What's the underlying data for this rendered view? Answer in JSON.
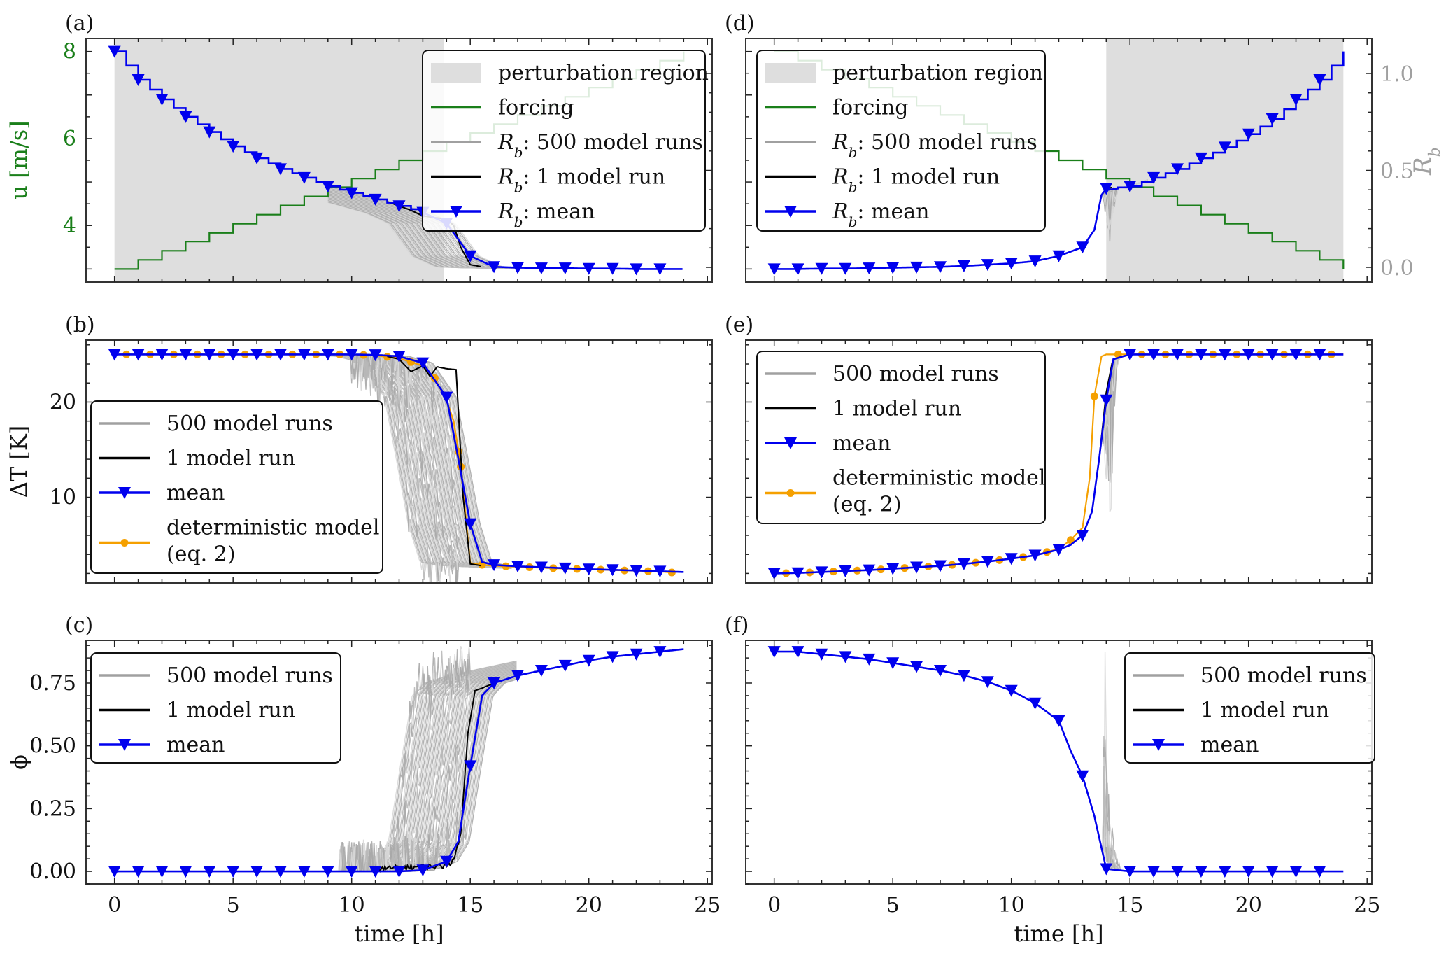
{
  "figure": {
    "xlabel": "time [h]",
    "xticks": [
      "0",
      "5",
      "10",
      "15",
      "20",
      "25"
    ]
  },
  "chart_data": [
    {
      "panel": "(a)",
      "type": "line",
      "xlabel": "",
      "ylabel": "u [m/s]",
      "ylabel_right": "R_b",
      "xlim": [
        -1.2,
        25.2
      ],
      "ylim": [
        2.7,
        8.3
      ],
      "ylim_right": [
        -0.02,
        1.2
      ],
      "yticks": [
        "4",
        "6",
        "8"
      ],
      "yticks_right": [
        "0.0",
        "0.5",
        "1.0"
      ],
      "shaded_region": {
        "label": "perturbation region",
        "x": [
          0,
          13.9
        ]
      },
      "colors": {
        "forcing": "#1a7f1a",
        "runs": "#a0a0a0",
        "one_run": "#000000",
        "mean": "#0000ee",
        "shade": "#dedede",
        "right_axis": "#9a9a9a"
      },
      "legend": {
        "placement": "upper-right",
        "entries": [
          "perturbation region",
          "forcing",
          "R_b: 500 model runs",
          "R_b: 1 model run",
          "R_b: mean"
        ]
      },
      "series": [
        {
          "name": "forcing",
          "axis": "left",
          "step": true,
          "x": [
            0,
            1,
            2,
            3,
            4,
            5,
            6,
            7,
            8,
            9,
            10,
            11,
            12,
            13,
            14,
            15,
            16,
            17,
            18,
            19,
            20,
            21,
            22,
            23,
            24
          ],
          "values": [
            3.0,
            3.21,
            3.42,
            3.63,
            3.83,
            4.04,
            4.25,
            4.46,
            4.67,
            4.88,
            5.08,
            5.29,
            5.5,
            5.71,
            5.92,
            6.13,
            6.33,
            6.54,
            6.75,
            6.96,
            7.17,
            7.38,
            7.58,
            7.79,
            8.0
          ]
        },
        {
          "name": "R_b: mean",
          "axis": "left",
          "marker": "triangle-down",
          "x": [
            0,
            1,
            2,
            3,
            4,
            5,
            6,
            7,
            8,
            9,
            10,
            11,
            12,
            13,
            14,
            15,
            16,
            17,
            18,
            19,
            20,
            21,
            22,
            23,
            24
          ],
          "values": [
            8.0,
            7.35,
            6.9,
            6.5,
            6.15,
            5.82,
            5.55,
            5.3,
            5.1,
            4.9,
            4.75,
            4.6,
            4.45,
            4.3,
            4.05,
            3.3,
            3.05,
            3.03,
            3.02,
            3.02,
            3.01,
            3.01,
            3.0,
            3.0,
            3.0
          ]
        },
        {
          "name": "R_b: 1 model run",
          "axis": "left",
          "x": [
            11.5,
            12,
            12.5,
            13,
            13.5,
            14,
            14.3,
            14.6,
            15,
            15.5
          ],
          "values": [
            4.55,
            4.45,
            4.35,
            4.22,
            4.18,
            4.15,
            4.0,
            3.5,
            3.1,
            3.05
          ]
        },
        {
          "name": "R_b: 500 model runs",
          "axis": "left",
          "count_shown": 40,
          "spread_x": [
            10.5,
            15.8
          ]
        }
      ]
    },
    {
      "panel": "(b)",
      "type": "line",
      "ylabel": "ΔT [K]",
      "xlim": [
        -1.2,
        25.2
      ],
      "ylim": [
        1.0,
        26.5
      ],
      "yticks": [
        "10",
        "20"
      ],
      "legend": {
        "placement": "center-left",
        "entries": [
          "500 model runs",
          "1 model run",
          "mean",
          "deterministic model (eq. 2)"
        ]
      },
      "colors": {
        "runs": "#a0a0a0",
        "one_run": "#000000",
        "mean": "#0000ee",
        "deterministic": "#f5a000"
      },
      "series": [
        {
          "name": "mean",
          "marker": "triangle-down",
          "x": [
            0,
            1,
            2,
            3,
            4,
            5,
            6,
            7,
            8,
            9,
            10,
            11,
            12,
            13,
            14,
            14.5,
            15,
            15.5,
            16,
            17,
            18,
            19,
            20,
            21,
            22,
            23,
            24
          ],
          "values": [
            25,
            25,
            25,
            25,
            25,
            25,
            25,
            25,
            25,
            25,
            25,
            24.95,
            24.8,
            24.1,
            20.5,
            14,
            7.2,
            3.2,
            2.9,
            2.75,
            2.65,
            2.55,
            2.45,
            2.38,
            2.3,
            2.22,
            2.15
          ]
        },
        {
          "name": "deterministic model (eq. 2)",
          "marker": "circle",
          "x": [
            0,
            1,
            2,
            3,
            4,
            5,
            6,
            7,
            8,
            9,
            10,
            11,
            12,
            13,
            13.5,
            14,
            14.3,
            14.6,
            15,
            15.5,
            16,
            17,
            18,
            19,
            20,
            21,
            22,
            23,
            23.5
          ],
          "values": [
            25,
            25,
            25,
            25,
            25,
            25,
            25,
            25,
            25,
            25,
            25,
            24.9,
            24.6,
            23.8,
            22.5,
            20.2,
            18,
            13.2,
            3.1,
            2.9,
            2.8,
            2.7,
            2.6,
            2.5,
            2.45,
            2.35,
            2.28,
            2.2,
            2.1
          ]
        },
        {
          "name": "1 model run",
          "x": [
            11.5,
            12,
            12.5,
            13,
            13.3,
            13.6,
            14,
            14.4,
            14.7,
            15,
            15.5
          ],
          "values": [
            24.8,
            24.5,
            23.2,
            23.8,
            22.7,
            23.7,
            23.5,
            23.4,
            10,
            3.0,
            2.8
          ]
        },
        {
          "name": "500 model runs",
          "count_shown": 60,
          "spread_x": [
            10,
            15.6
          ]
        }
      ]
    },
    {
      "panel": "(c)",
      "type": "line",
      "ylabel": "ϕ",
      "xlabel": "time [h]",
      "xlim": [
        -1.2,
        25.2
      ],
      "ylim": [
        -0.05,
        0.92
      ],
      "yticks": [
        "0.00",
        "0.25",
        "0.50",
        "0.75"
      ],
      "legend": {
        "placement": "upper-left",
        "entries": [
          "500 model runs",
          "1 model run",
          "mean"
        ]
      },
      "colors": {
        "runs": "#a0a0a0",
        "one_run": "#000000",
        "mean": "#0000ee"
      },
      "series": [
        {
          "name": "mean",
          "marker": "triangle-down",
          "x": [
            0,
            1,
            2,
            3,
            4,
            5,
            6,
            7,
            8,
            9,
            10,
            11,
            12,
            13,
            14,
            14.5,
            15,
            15.5,
            16,
            17,
            18,
            19,
            20,
            21,
            22,
            23,
            24
          ],
          "values": [
            0,
            0,
            0,
            0,
            0,
            0,
            0,
            0,
            0,
            0,
            0,
            0,
            0,
            0.005,
            0.04,
            0.12,
            0.42,
            0.7,
            0.75,
            0.78,
            0.8,
            0.82,
            0.84,
            0.855,
            0.865,
            0.875,
            0.885
          ]
        },
        {
          "name": "1 model run",
          "x": [
            11,
            12,
            13,
            13.8,
            14.3,
            14.6,
            14.9,
            15.2,
            15.5,
            16
          ],
          "values": [
            0,
            0.005,
            0.01,
            0.01,
            0.03,
            0.15,
            0.55,
            0.72,
            0.73,
            0.75
          ]
        },
        {
          "name": "500 model runs",
          "count_shown": 60,
          "spread_x": [
            9.5,
            15.8
          ]
        }
      ]
    },
    {
      "panel": "(d)",
      "type": "line",
      "xlim": [
        -1.2,
        25.2
      ],
      "ylim": [
        2.7,
        8.3
      ],
      "ylim_right": [
        -0.02,
        1.2
      ],
      "yticks_right": [
        "0.0",
        "0.5",
        "1.0"
      ],
      "ylabel_right": "R_b",
      "shaded_region": {
        "label": "perturbation region",
        "x": [
          14.0,
          24
        ]
      },
      "legend": {
        "placement": "upper-left",
        "entries": [
          "perturbation region",
          "forcing",
          "R_b: 500 model runs",
          "R_b: 1 model run",
          "R_b: mean"
        ]
      },
      "colors": {
        "forcing": "#1a7f1a",
        "runs": "#a0a0a0",
        "one_run": "#000000",
        "mean": "#0000ee",
        "shade": "#dedede"
      },
      "series": [
        {
          "name": "forcing",
          "axis": "left",
          "step": true,
          "x": [
            0,
            1,
            2,
            3,
            4,
            5,
            6,
            7,
            8,
            9,
            10,
            11,
            12,
            13,
            14,
            15,
            16,
            17,
            18,
            19,
            20,
            21,
            22,
            23,
            24
          ],
          "values": [
            8.0,
            7.79,
            7.58,
            7.38,
            7.17,
            6.96,
            6.75,
            6.54,
            6.33,
            6.13,
            5.92,
            5.71,
            5.5,
            5.29,
            5.08,
            4.88,
            4.67,
            4.46,
            4.25,
            4.04,
            3.83,
            3.63,
            3.42,
            3.21,
            3.0
          ]
        },
        {
          "name": "R_b: mean",
          "axis": "left",
          "marker": "triangle-down",
          "x": [
            0,
            1,
            2,
            3,
            4,
            5,
            6,
            7,
            8,
            9,
            10,
            11,
            12,
            13,
            13.5,
            13.8,
            14,
            15,
            16,
            17,
            18,
            19,
            20,
            21,
            22,
            23,
            24
          ],
          "values": [
            3.0,
            3.0,
            3.01,
            3.01,
            3.02,
            3.03,
            3.04,
            3.05,
            3.07,
            3.1,
            3.13,
            3.18,
            3.3,
            3.5,
            3.9,
            4.7,
            4.85,
            4.9,
            5.1,
            5.3,
            5.55,
            5.8,
            6.1,
            6.45,
            6.9,
            7.35,
            8.0
          ]
        },
        {
          "name": "R_b: 1 model run",
          "axis": "left",
          "x": [
            13.5,
            13.8,
            14.0,
            14.3
          ],
          "values": [
            3.9,
            4.7,
            4.85,
            4.88
          ]
        },
        {
          "name": "R_b: 500 model runs",
          "axis": "left",
          "count_shown": 25,
          "spread_x": [
            13.6,
            14.6
          ]
        }
      ]
    },
    {
      "panel": "(e)",
      "type": "line",
      "xlim": [
        -1.2,
        25.2
      ],
      "ylim": [
        1.0,
        26.5
      ],
      "legend": {
        "placement": "upper-left",
        "entries": [
          "500 model runs",
          "1 model run",
          "mean",
          "deterministic model (eq. 2)"
        ]
      },
      "colors": {
        "runs": "#a0a0a0",
        "one_run": "#000000",
        "mean": "#0000ee",
        "deterministic": "#f5a000"
      },
      "series": [
        {
          "name": "mean",
          "marker": "triangle-down",
          "x": [
            0,
            1,
            2,
            3,
            4,
            5,
            6,
            7,
            8,
            9,
            10,
            11,
            12,
            12.5,
            13,
            13.4,
            13.7,
            14,
            14.3,
            15,
            16,
            17,
            18,
            19,
            20,
            21,
            22,
            23,
            24
          ],
          "values": [
            2.0,
            2.05,
            2.15,
            2.25,
            2.35,
            2.5,
            2.65,
            2.8,
            3.0,
            3.25,
            3.55,
            3.9,
            4.5,
            5.0,
            6.0,
            8.5,
            14,
            20.2,
            24.5,
            25,
            25,
            25,
            25,
            25,
            25,
            25,
            25,
            25,
            25
          ]
        },
        {
          "name": "deterministic model (eq. 2)",
          "marker": "circle",
          "x": [
            0,
            1,
            2,
            3,
            4,
            5,
            6,
            7,
            8,
            9,
            10,
            11,
            12,
            12.5,
            13,
            13.3,
            13.5,
            13.8,
            14,
            14.5,
            15,
            16,
            17,
            18,
            19,
            20,
            21,
            22,
            23,
            24
          ],
          "values": [
            2.0,
            2.05,
            2.15,
            2.25,
            2.35,
            2.5,
            2.65,
            2.8,
            3.0,
            3.25,
            3.55,
            3.9,
            4.6,
            5.5,
            6.8,
            12,
            20.6,
            24.8,
            25,
            25,
            25,
            25,
            25,
            25,
            25,
            25,
            25,
            25,
            25,
            25
          ]
        },
        {
          "name": "1 model run",
          "x": [
            13.4,
            13.7,
            14.0,
            14.3
          ],
          "values": [
            8.5,
            14,
            21,
            24.8
          ]
        },
        {
          "name": "500 model runs",
          "count_shown": 25,
          "spread_x": [
            13.6,
            14.5
          ]
        }
      ]
    },
    {
      "panel": "(f)",
      "type": "line",
      "xlabel": "time [h]",
      "xlim": [
        -1.2,
        25.2
      ],
      "ylim": [
        -0.05,
        0.92
      ],
      "legend": {
        "placement": "upper-right",
        "entries": [
          "500 model runs",
          "1 model run",
          "mean"
        ]
      },
      "colors": {
        "runs": "#a0a0a0",
        "one_run": "#000000",
        "mean": "#0000ee"
      },
      "series": [
        {
          "name": "mean",
          "marker": "triangle-down",
          "x": [
            0,
            1,
            2,
            3,
            4,
            5,
            6,
            7,
            8,
            9,
            10,
            11,
            12,
            12.5,
            13,
            13.5,
            14,
            15,
            16,
            17,
            18,
            19,
            20,
            21,
            22,
            23,
            24
          ],
          "values": [
            0.875,
            0.875,
            0.865,
            0.855,
            0.845,
            0.83,
            0.815,
            0.8,
            0.78,
            0.755,
            0.72,
            0.67,
            0.6,
            0.48,
            0.38,
            0.22,
            0.01,
            0,
            0,
            0,
            0,
            0,
            0,
            0,
            0,
            0,
            0
          ]
        },
        {
          "name": "1 model run",
          "x": [
            13.9,
            14.0,
            14.1
          ],
          "values": [
            0.02,
            0.0,
            0.0
          ]
        },
        {
          "name": "500 model runs",
          "count_shown": 20,
          "spread_x": [
            13.9,
            14.6
          ],
          "peak": 0.78
        }
      ]
    }
  ]
}
